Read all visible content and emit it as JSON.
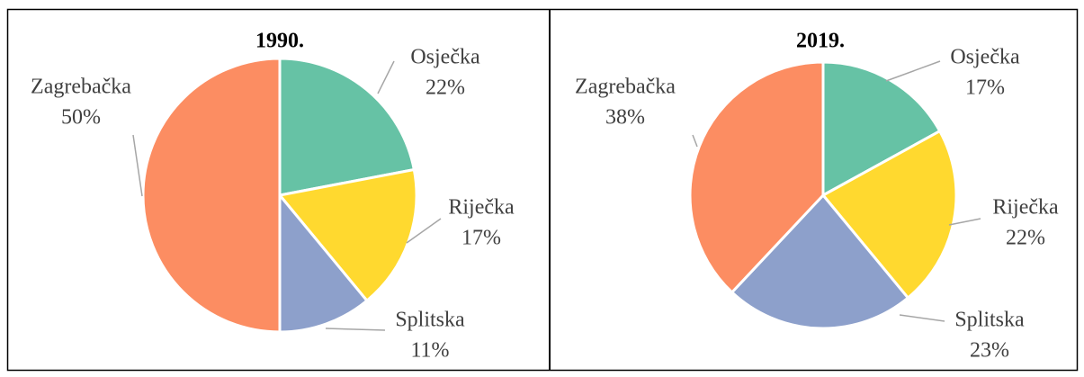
{
  "chart_data": [
    {
      "type": "pie",
      "title": "1990.",
      "categories": [
        "Osječka",
        "Riječka",
        "Splitska",
        "Zagrebačka"
      ],
      "values": [
        22,
        17,
        11,
        50
      ],
      "value_labels": [
        "22%",
        "17%",
        "11%",
        "50%"
      ],
      "colors": [
        "#66c2a5",
        "#ffd92f",
        "#8da0cb",
        "#fc8d62"
      ]
    },
    {
      "type": "pie",
      "title": "2019.",
      "categories": [
        "Osječka",
        "Riječka",
        "Splitska",
        "Zagrebačka"
      ],
      "values": [
        17,
        22,
        23,
        38
      ],
      "value_labels": [
        "17%",
        "22%",
        "23%",
        "38%"
      ],
      "colors": [
        "#66c2a5",
        "#ffd92f",
        "#8da0cb",
        "#fc8d62"
      ]
    }
  ]
}
